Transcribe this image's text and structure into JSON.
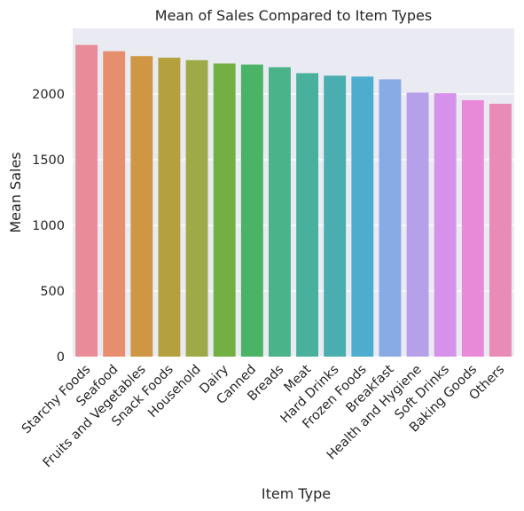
{
  "chart_data": {
    "type": "bar",
    "title": "Mean of Sales Compared to Item Types",
    "xlabel": "Item Type",
    "ylabel": "Mean Sales",
    "ylim": [
      0,
      2500
    ],
    "yticks": [
      0,
      500,
      1000,
      1500,
      2000
    ],
    "grid": true,
    "categories": [
      "Starchy Foods",
      "Seafood",
      "Fruits and Vegetables",
      "Snack Foods",
      "Household",
      "Dairy",
      "Canned",
      "Breads",
      "Meat",
      "Hard Drinks",
      "Frozen Foods",
      "Breakfast",
      "Health and Hygiene",
      "Soft Drinks",
      "Baking Goods",
      "Others"
    ],
    "values": [
      2374,
      2326,
      2289,
      2277,
      2258,
      2233,
      2225,
      2204,
      2159,
      2140,
      2133,
      2112,
      2011,
      2006,
      1953,
      1926
    ],
    "colors": [
      "#ea8b9a",
      "#e78e6e",
      "#cf9643",
      "#b4a03f",
      "#9eaa48",
      "#72b043",
      "#4ab365",
      "#4ab38a",
      "#4ab09e",
      "#4aaeb0",
      "#4eadcf",
      "#88abe5",
      "#b6a0ea",
      "#d692ea",
      "#e88ad8",
      "#e88bb7"
    ]
  }
}
